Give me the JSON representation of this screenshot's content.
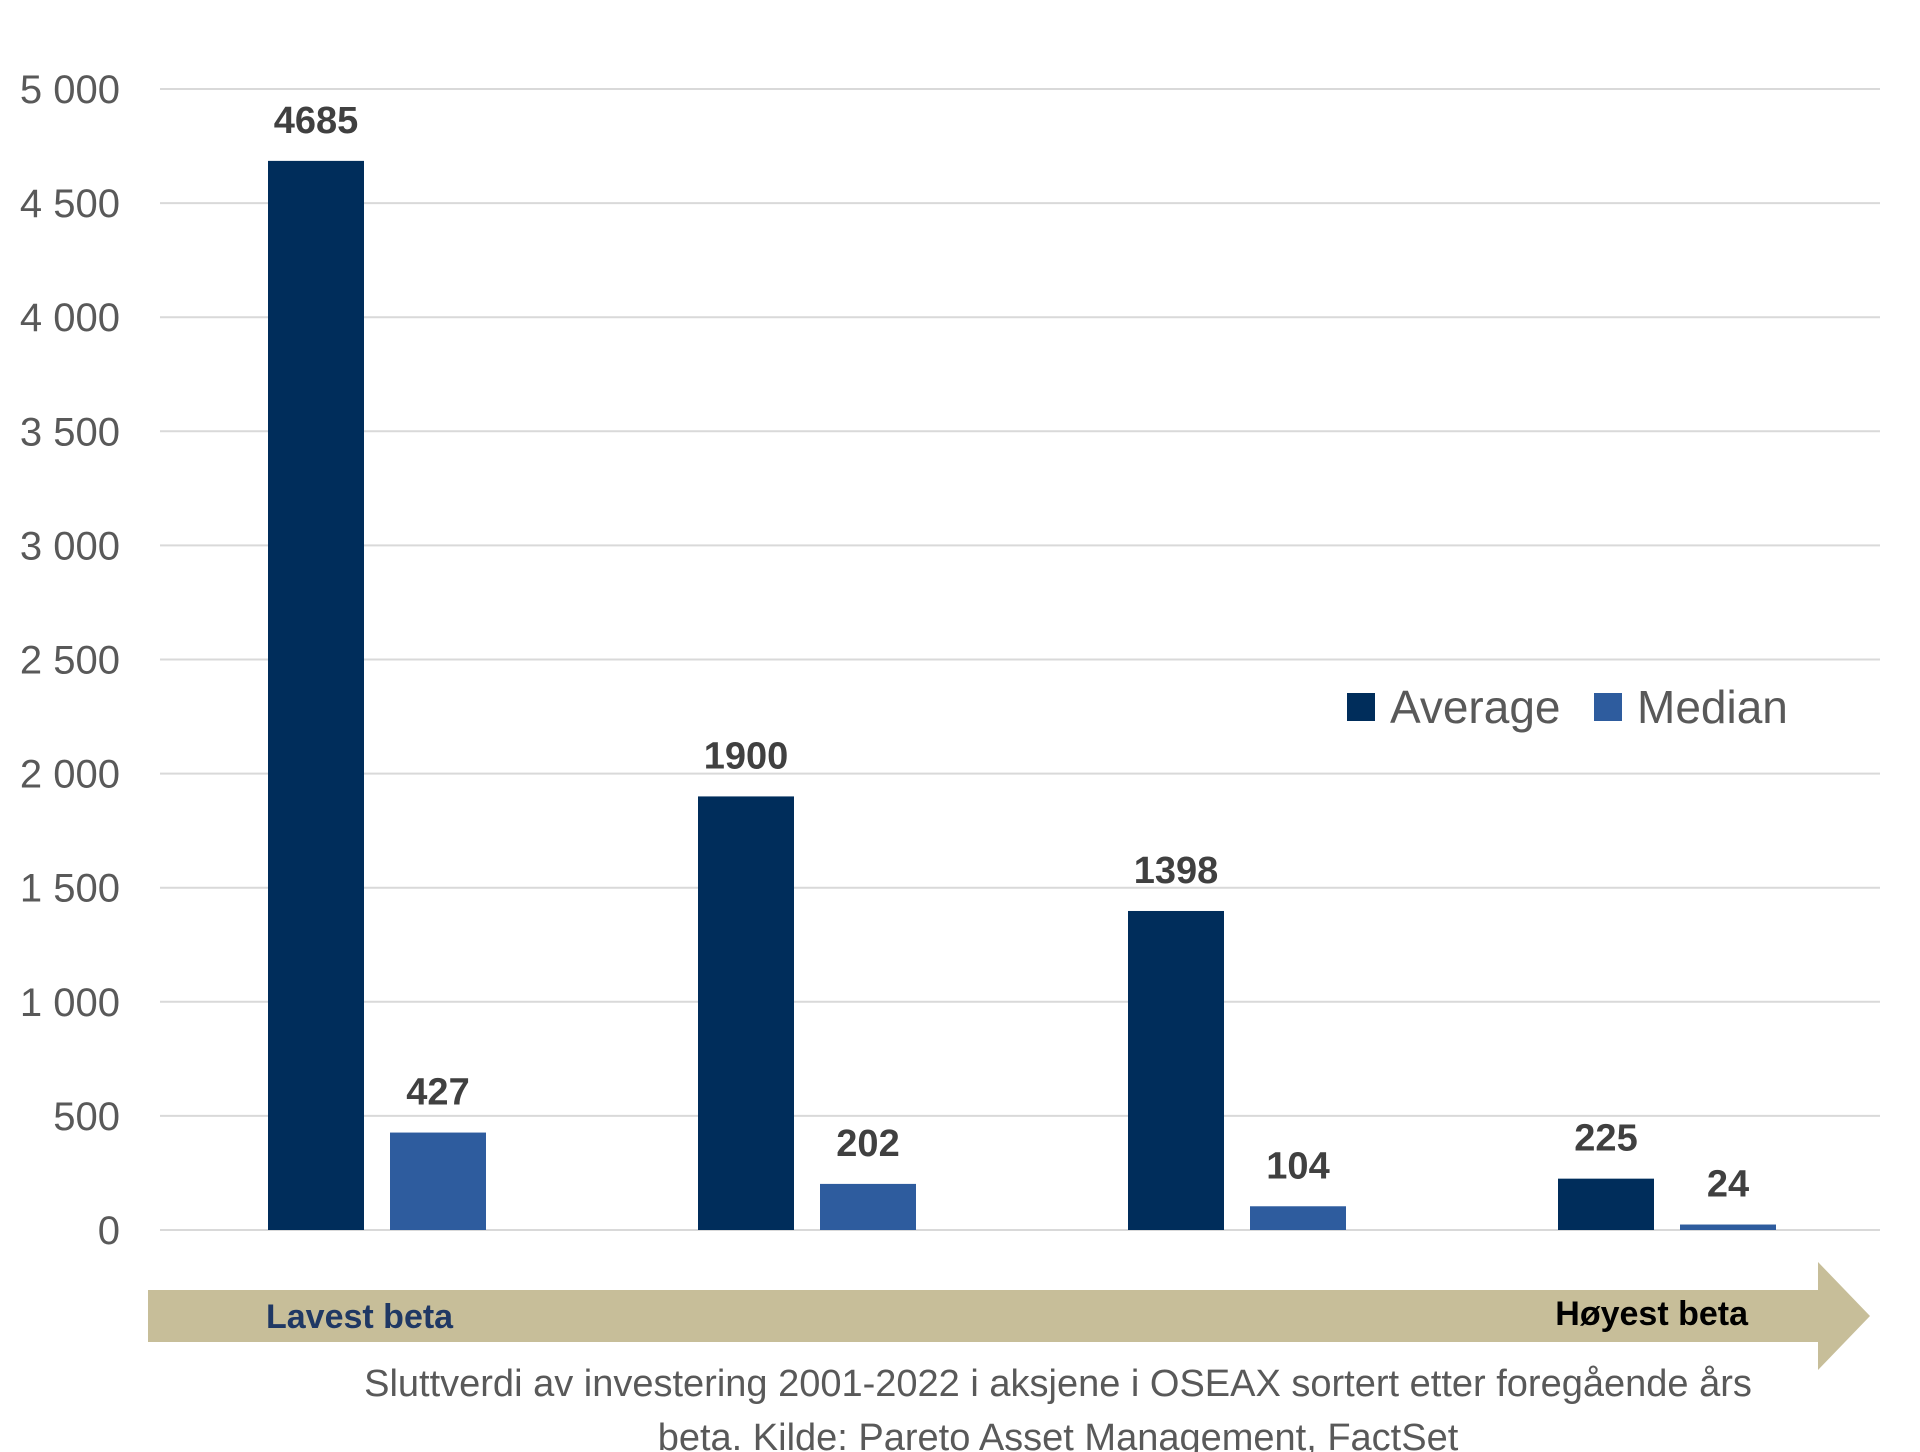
{
  "chart_data": {
    "type": "bar",
    "categories": [
      "",
      "",
      "",
      ""
    ],
    "series": [
      {
        "name": "Average",
        "values": [
          4685,
          1900,
          1398,
          225
        ],
        "color": "#002D5B"
      },
      {
        "name": "Median",
        "values": [
          427,
          202,
          104,
          24
        ],
        "color": "#2E5C9E"
      }
    ],
    "ylim": [
      0,
      5000
    ],
    "yticks": [
      0,
      500,
      1000,
      1500,
      2000,
      2500,
      3000,
      3500,
      4000,
      4500,
      5000
    ],
    "ytick_labels": [
      "0",
      "500",
      "1 000",
      "1 500",
      "2 000",
      "2 500",
      "3 000",
      "3 500",
      "4 000",
      "4 500",
      "5 000"
    ],
    "grid": true,
    "legend": "right",
    "data_labels": true
  },
  "arrow": {
    "left_label": "Lavest beta",
    "right_label": "Høyest beta",
    "fill_color": "#C7BE99",
    "left_label_color": "#1F3864",
    "right_label_color": "#000000"
  },
  "caption": {
    "line1": "Sluttverdi av investering 2001-2022 i aksjene i OSEAX sortert etter foregående års",
    "line2": "beta. Kilde: Pareto Asset Management, FactSet"
  },
  "colors": {
    "gridline": "#D9D9D9",
    "axis_text": "#595959",
    "data_label_text": "#404040"
  }
}
